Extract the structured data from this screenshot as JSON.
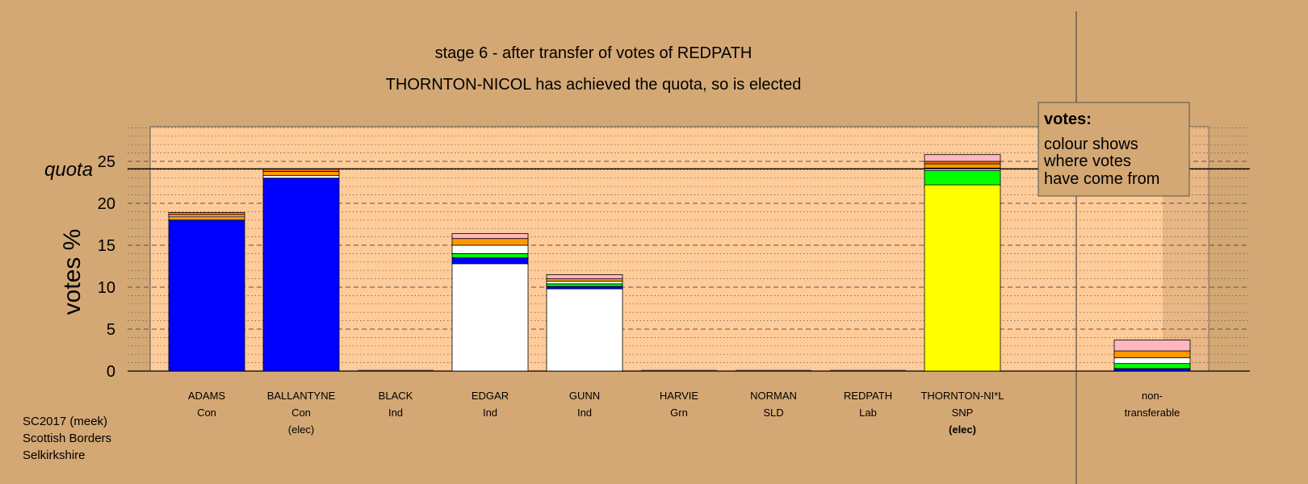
{
  "chart_data": {
    "type": "bar",
    "stacked": true,
    "title": "stage 6 - after transfer of votes of REDPATH",
    "subtitle": "THORNTON-NICOL has achieved the quota, so is elected",
    "ylabel": "votes %",
    "ylim": [
      0,
      29
    ],
    "yticks": [
      0,
      5,
      10,
      15,
      20,
      25
    ],
    "quota": 24.1,
    "quota_label": "quota",
    "grid": true,
    "legend": {
      "title": "votes:",
      "lines": [
        "colour shows",
        "where votes",
        "have come from"
      ],
      "placement": "top-right"
    },
    "source_colors": {
      "Con": "#0000ff",
      "Ind": "#ffffff",
      "SNP": "#ffff00",
      "Grn": "#00ff00",
      "SLD": "#ff9900",
      "Lab": "#ffb6c1",
      "Other": "#ff6a00"
    },
    "candidates": [
      {
        "name": "ADAMS",
        "party": "Con",
        "status": "",
        "segments": [
          {
            "source": "Con",
            "value": 18.0
          },
          {
            "source": "SLD",
            "value": 0.4
          },
          {
            "source": "Ind",
            "value": 0.2
          },
          {
            "source": "Other",
            "value": 0.3
          }
        ]
      },
      {
        "name": "BALLANTYNE",
        "party": "Con",
        "status": "(elec)",
        "segments": [
          {
            "source": "Con",
            "value": 23.0
          },
          {
            "source": "Ind",
            "value": 0.3
          },
          {
            "source": "SLD",
            "value": 0.5
          },
          {
            "source": "Other",
            "value": 0.3
          }
        ]
      },
      {
        "name": "BLACK",
        "party": "Ind",
        "status": "",
        "segments": []
      },
      {
        "name": "EDGAR",
        "party": "Ind",
        "status": "",
        "segments": [
          {
            "source": "Ind",
            "value": 12.8
          },
          {
            "source": "Con",
            "value": 0.7
          },
          {
            "source": "Grn",
            "value": 0.5
          },
          {
            "source": "Ind",
            "value": 1.0
          },
          {
            "source": "SLD",
            "value": 0.8
          },
          {
            "source": "Lab",
            "value": 0.6
          }
        ]
      },
      {
        "name": "GUNN",
        "party": "Ind",
        "status": "",
        "segments": [
          {
            "source": "Ind",
            "value": 9.8
          },
          {
            "source": "Con",
            "value": 0.3
          },
          {
            "source": "Grn",
            "value": 0.3
          },
          {
            "source": "Ind",
            "value": 0.3
          },
          {
            "source": "SLD",
            "value": 0.3
          },
          {
            "source": "Lab",
            "value": 0.5
          }
        ]
      },
      {
        "name": "HARVIE",
        "party": "Grn",
        "status": "",
        "segments": []
      },
      {
        "name": "NORMAN",
        "party": "SLD",
        "status": "",
        "segments": []
      },
      {
        "name": "REDPATH",
        "party": "Lab",
        "status": "",
        "segments": []
      },
      {
        "name": "THORNTON-NI*L",
        "party": "SNP",
        "status": "(elec)",
        "segments": [
          {
            "source": "SNP",
            "value": 22.2
          },
          {
            "source": "Grn",
            "value": 1.7
          },
          {
            "source": "Ind",
            "value": 0.3
          },
          {
            "source": "SLD",
            "value": 0.5
          },
          {
            "source": "Other",
            "value": 0.3
          },
          {
            "source": "Lab",
            "value": 0.8
          }
        ]
      },
      {
        "name": "non-",
        "party": "transferable",
        "status": "",
        "segments": [
          {
            "source": "Con",
            "value": 0.3
          },
          {
            "source": "Grn",
            "value": 0.6
          },
          {
            "source": "Ind",
            "value": 0.7
          },
          {
            "source": "SLD",
            "value": 0.8
          },
          {
            "source": "Lab",
            "value": 1.3
          }
        ]
      }
    ]
  },
  "footer": {
    "line1": "SC2017 (meek)",
    "line2": "Scottish Borders",
    "line3": "Selkirkshire"
  }
}
